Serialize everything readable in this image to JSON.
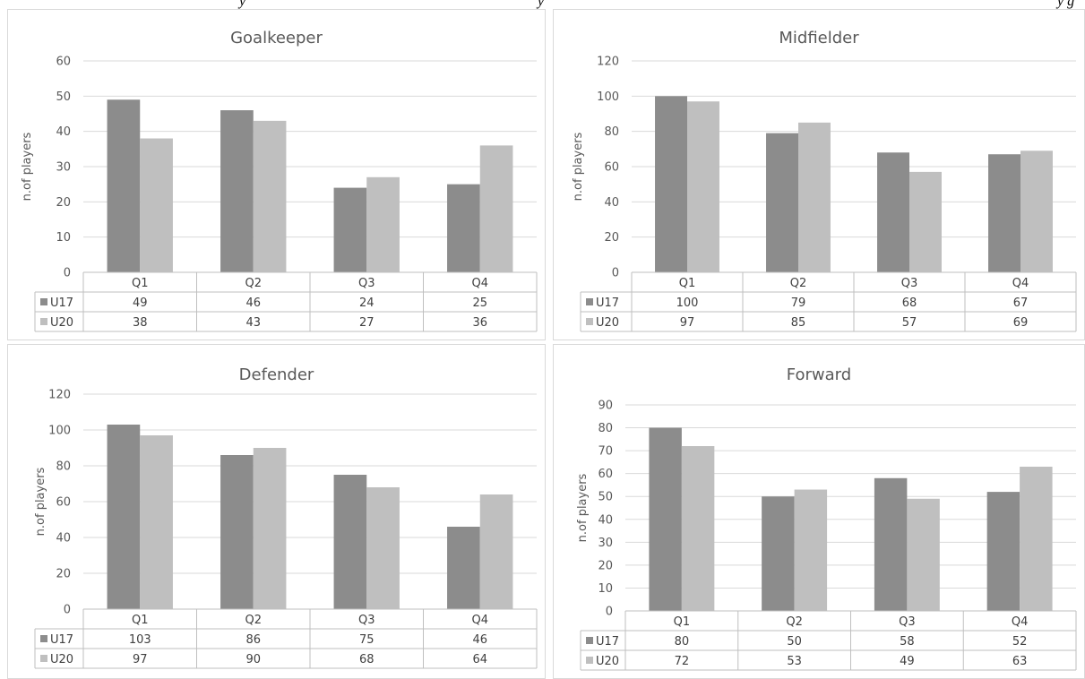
{
  "caption_fragment": {
    "left": "y",
    "middle": "y",
    "right": "y g"
  },
  "colors": {
    "U17": "#8c8c8c",
    "U20": "#bfbfbf",
    "grid": "#d9d9d9",
    "text": "#595959"
  },
  "chart_data": [
    {
      "type": "bar",
      "title": "Goalkeeper",
      "ylabel": "n.of players",
      "categories": [
        "Q1",
        "Q2",
        "Q3",
        "Q4"
      ],
      "ylim": [
        0,
        60
      ],
      "yticks": [
        0,
        10,
        20,
        30,
        40,
        50,
        60
      ],
      "grid": true,
      "legend": "data-table",
      "series": [
        {
          "name": "U17",
          "values": [
            49,
            46,
            24,
            25
          ]
        },
        {
          "name": "U20",
          "values": [
            38,
            43,
            27,
            36
          ]
        }
      ]
    },
    {
      "type": "bar",
      "title": "Midfielder",
      "ylabel": "n.of players",
      "categories": [
        "Q1",
        "Q2",
        "Q3",
        "Q4"
      ],
      "ylim": [
        0,
        120
      ],
      "yticks": [
        0,
        20,
        40,
        60,
        80,
        100,
        120
      ],
      "grid": true,
      "legend": "data-table",
      "series": [
        {
          "name": "U17",
          "values": [
            100,
            79,
            68,
            67
          ]
        },
        {
          "name": "U20",
          "values": [
            97,
            85,
            57,
            69
          ]
        }
      ]
    },
    {
      "type": "bar",
      "title": "Defender",
      "ylabel": "n.of players",
      "categories": [
        "Q1",
        "Q2",
        "Q3",
        "Q4"
      ],
      "ylim": [
        0,
        120
      ],
      "yticks": [
        0,
        20,
        40,
        60,
        80,
        100,
        120
      ],
      "grid": true,
      "legend": "data-table",
      "series": [
        {
          "name": "U17",
          "values": [
            103,
            86,
            75,
            46
          ]
        },
        {
          "name": "U20",
          "values": [
            97,
            90,
            68,
            64
          ]
        }
      ]
    },
    {
      "type": "bar",
      "title": "Forward",
      "ylabel": "n.of players",
      "categories": [
        "Q1",
        "Q2",
        "Q3",
        "Q4"
      ],
      "ylim": [
        0,
        90
      ],
      "yticks": [
        0,
        10,
        20,
        30,
        40,
        50,
        60,
        70,
        80,
        90
      ],
      "grid": true,
      "legend": "data-table",
      "series": [
        {
          "name": "U17",
          "values": [
            80,
            50,
            58,
            52
          ]
        },
        {
          "name": "U20",
          "values": [
            72,
            53,
            49,
            63
          ]
        }
      ]
    }
  ]
}
